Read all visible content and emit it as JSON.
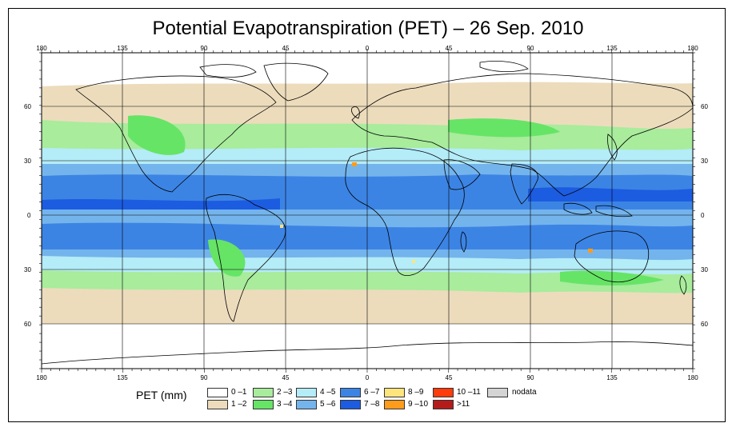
{
  "title": "Potential Evapotranspiration (PET) – 26 Sep. 2010",
  "axes": {
    "lon_labels": [
      "180",
      "135",
      "90",
      "45",
      "0",
      "45",
      "90",
      "135",
      "180"
    ],
    "lat_labels": [
      "60",
      "30",
      "0",
      "30",
      "60"
    ]
  },
  "legend": {
    "title": "PET (mm)",
    "items": [
      {
        "label": "0 –1",
        "color": "#ffffff"
      },
      {
        "label": "1 –2",
        "color": "#ecdcbc"
      },
      {
        "label": "2 –3",
        "color": "#a8ec9c"
      },
      {
        "label": "3 –4",
        "color": "#66e466"
      },
      {
        "label": "4 –5",
        "color": "#b4ecf8"
      },
      {
        "label": "5 –6",
        "color": "#74b4ec"
      },
      {
        "label": "6 –7",
        "color": "#3c84e4"
      },
      {
        "label": "7 –8",
        "color": "#1c5ce0"
      },
      {
        "label": "8 –9",
        "color": "#ffe47c"
      },
      {
        "label": "9 –10",
        "color": "#ff9c1c"
      },
      {
        "label": "10 –11",
        "color": "#ff3c0c"
      },
      {
        "label": ">11",
        "color": "#b41c1c"
      },
      {
        "label": "nodata",
        "color": "#d4d4d4"
      }
    ]
  }
}
